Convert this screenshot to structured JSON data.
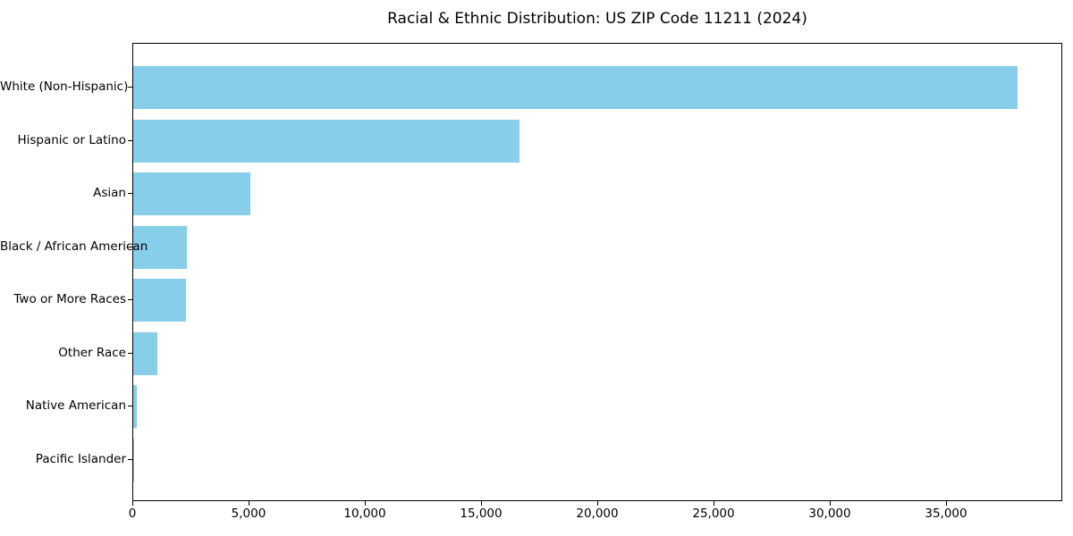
{
  "chart_data": {
    "type": "bar",
    "orientation": "horizontal",
    "title": "Racial & Ethnic Distribution: US ZIP Code 11211 (2024)",
    "categories": [
      "White (Non-Hispanic)",
      "Hispanic or Latino",
      "Asian",
      "Black / African American",
      "Two or More Races",
      "Other Race",
      "Native American",
      "Pacific Islander"
    ],
    "values": [
      38050,
      16600,
      5050,
      2310,
      2270,
      1040,
      150,
      20
    ],
    "xlabel": "",
    "ylabel": "",
    "xlim": [
      0,
      40000
    ],
    "xticks": [
      0,
      5000,
      10000,
      15000,
      20000,
      25000,
      30000,
      35000
    ],
    "xtick_labels": [
      "0",
      "5,000",
      "10,000",
      "15,000",
      "20,000",
      "25,000",
      "30,000",
      "35,000"
    ],
    "bar_color": "#87CEEB",
    "axis_color": "#000000",
    "grid": false,
    "legend_position": "none"
  }
}
